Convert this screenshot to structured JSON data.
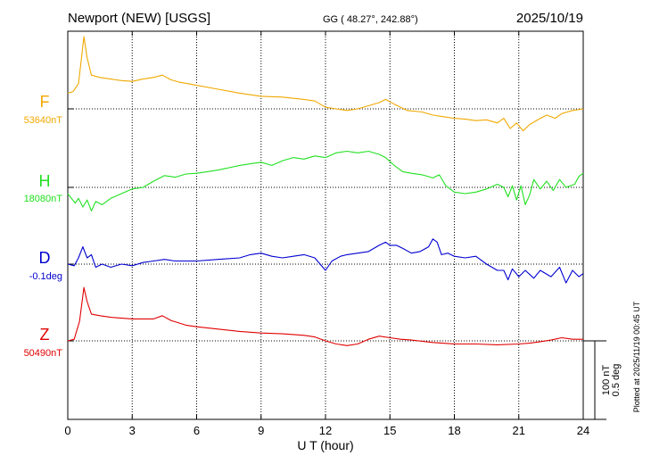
{
  "header": {
    "station": "Newport (NEW)  [USGS]",
    "coords": "GG ( 48.27°, 242.88°)",
    "date": "2025/10/19"
  },
  "footer": {
    "plotted": "Plotted at 2025/11/19 00:45 UT"
  },
  "colors": {
    "F": "#f0a800",
    "H": "#20e020",
    "D": "#0000d0",
    "Z": "#e00000",
    "axis": "#000000",
    "grid": "#000000"
  },
  "chart_data": {
    "type": "line",
    "title": "Newport (NEW)  [USGS]",
    "xlabel": "U T (hour)",
    "xlim": [
      0,
      24
    ],
    "xticks": [
      "0",
      "3",
      "6",
      "9",
      "12",
      "15",
      "18",
      "21",
      "24"
    ],
    "grid": true,
    "scale": {
      "label_nt": "100 nT",
      "label_deg": "0.5 deg"
    },
    "series": [
      {
        "name": "F",
        "baseline_label": "53640nT",
        "baseline": 53640,
        "unit": "nT",
        "points": [
          [
            0,
            53660
          ],
          [
            0.25,
            53662
          ],
          [
            0.5,
            53672
          ],
          [
            0.62,
            53700
          ],
          [
            0.75,
            53732
          ],
          [
            0.9,
            53705
          ],
          [
            1.1,
            53683
          ],
          [
            1.5,
            53680
          ],
          [
            2,
            53678
          ],
          [
            2.5,
            53676
          ],
          [
            3,
            53675
          ],
          [
            3.5,
            53678
          ],
          [
            4,
            53680
          ],
          [
            4.4,
            53683
          ],
          [
            4.8,
            53677
          ],
          [
            5.2,
            53674
          ],
          [
            6,
            53670
          ],
          [
            7,
            53665
          ],
          [
            8,
            53660
          ],
          [
            9,
            53656
          ],
          [
            10,
            53655
          ],
          [
            11,
            53652
          ],
          [
            11.5,
            53650
          ],
          [
            12,
            53642
          ],
          [
            12.5,
            53640
          ],
          [
            13,
            53638
          ],
          [
            13.5,
            53640
          ],
          [
            14,
            53644
          ],
          [
            14.5,
            53648
          ],
          [
            14.8,
            53652
          ],
          [
            15.2,
            53646
          ],
          [
            15.8,
            53638
          ],
          [
            16.5,
            53636
          ],
          [
            17,
            53632
          ],
          [
            17.5,
            53630
          ],
          [
            18,
            53628
          ],
          [
            18.5,
            53627
          ],
          [
            19,
            53625
          ],
          [
            19.5,
            53626
          ],
          [
            20,
            53622
          ],
          [
            20.3,
            53628
          ],
          [
            20.6,
            53615
          ],
          [
            20.9,
            53622
          ],
          [
            21.2,
            53612
          ],
          [
            21.5,
            53620
          ],
          [
            22,
            53628
          ],
          [
            22.3,
            53632
          ],
          [
            22.7,
            53628
          ],
          [
            23,
            53634
          ],
          [
            23.5,
            53638
          ],
          [
            24,
            53640
          ]
        ]
      },
      {
        "name": "H",
        "baseline_label": "18080nT",
        "baseline": 18080,
        "unit": "nT",
        "points": [
          [
            0,
            18072
          ],
          [
            0.2,
            18065
          ],
          [
            0.35,
            18060
          ],
          [
            0.5,
            18066
          ],
          [
            0.7,
            18055
          ],
          [
            0.9,
            18064
          ],
          [
            1.1,
            18050
          ],
          [
            1.3,
            18062
          ],
          [
            1.6,
            18058
          ],
          [
            2,
            18066
          ],
          [
            2.5,
            18072
          ],
          [
            3,
            18078
          ],
          [
            3.5,
            18080
          ],
          [
            4,
            18088
          ],
          [
            4.5,
            18095
          ],
          [
            5,
            18093
          ],
          [
            5.5,
            18097
          ],
          [
            6,
            18098
          ],
          [
            6.5,
            18100
          ],
          [
            7,
            18102
          ],
          [
            7.5,
            18105
          ],
          [
            8,
            18108
          ],
          [
            8.5,
            18110
          ],
          [
            9,
            18112
          ],
          [
            9.5,
            18108
          ],
          [
            10,
            18114
          ],
          [
            10.5,
            18118
          ],
          [
            11,
            18116
          ],
          [
            11.5,
            18120
          ],
          [
            12,
            18118
          ],
          [
            12.5,
            18124
          ],
          [
            13,
            18126
          ],
          [
            13.5,
            18124
          ],
          [
            14,
            18126
          ],
          [
            14.5,
            18122
          ],
          [
            14.8,
            18118
          ],
          [
            15.2,
            18108
          ],
          [
            15.6,
            18100
          ],
          [
            16,
            18098
          ],
          [
            16.5,
            18096
          ],
          [
            17,
            18092
          ],
          [
            17.3,
            18096
          ],
          [
            17.6,
            18082
          ],
          [
            18,
            18074
          ],
          [
            18.5,
            18072
          ],
          [
            19,
            18074
          ],
          [
            19.5,
            18078
          ],
          [
            20,
            18084
          ],
          [
            20.3,
            18080
          ],
          [
            20.5,
            18068
          ],
          [
            20.7,
            18082
          ],
          [
            20.9,
            18064
          ],
          [
            21.1,
            18082
          ],
          [
            21.3,
            18058
          ],
          [
            21.5,
            18070
          ],
          [
            21.7,
            18090
          ],
          [
            22,
            18078
          ],
          [
            22.3,
            18088
          ],
          [
            22.6,
            18076
          ],
          [
            22.9,
            18090
          ],
          [
            23.2,
            18080
          ],
          [
            23.6,
            18084
          ],
          [
            23.8,
            18094
          ],
          [
            24,
            18098
          ]
        ]
      },
      {
        "name": "D",
        "baseline_label": "-0.1deg",
        "baseline": -0.1,
        "unit": "deg",
        "points": [
          [
            0,
            -0.1
          ],
          [
            0.3,
            -0.11
          ],
          [
            0.5,
            -0.06
          ],
          [
            0.7,
            0.01
          ],
          [
            0.9,
            -0.06
          ],
          [
            1.1,
            -0.04
          ],
          [
            1.3,
            -0.12
          ],
          [
            1.6,
            -0.1
          ],
          [
            2,
            -0.12
          ],
          [
            2.5,
            -0.1
          ],
          [
            3,
            -0.11
          ],
          [
            3.5,
            -0.09
          ],
          [
            4,
            -0.08
          ],
          [
            4.5,
            -0.07
          ],
          [
            5,
            -0.08
          ],
          [
            6,
            -0.08
          ],
          [
            7,
            -0.07
          ],
          [
            8,
            -0.06
          ],
          [
            8.5,
            -0.04
          ],
          [
            9,
            -0.03
          ],
          [
            9.5,
            -0.05
          ],
          [
            10,
            -0.06
          ],
          [
            10.5,
            -0.05
          ],
          [
            11,
            -0.04
          ],
          [
            11.5,
            -0.06
          ],
          [
            12,
            -0.14
          ],
          [
            12.3,
            -0.08
          ],
          [
            12.7,
            -0.05
          ],
          [
            13,
            -0.04
          ],
          [
            13.5,
            -0.03
          ],
          [
            14,
            -0.02
          ],
          [
            14.5,
            0.02
          ],
          [
            14.8,
            0.04
          ],
          [
            15,
            0.02
          ],
          [
            15.3,
            0.02
          ],
          [
            15.6,
            0.0
          ],
          [
            16,
            -0.03
          ],
          [
            16.4,
            -0.02
          ],
          [
            16.8,
            0.01
          ],
          [
            17,
            0.06
          ],
          [
            17.2,
            0.04
          ],
          [
            17.4,
            -0.04
          ],
          [
            17.7,
            -0.03
          ],
          [
            18,
            -0.05
          ],
          [
            18.5,
            -0.06
          ],
          [
            19,
            -0.05
          ],
          [
            19.5,
            -0.1
          ],
          [
            20,
            -0.14
          ],
          [
            20.3,
            -0.14
          ],
          [
            20.5,
            -0.2
          ],
          [
            20.7,
            -0.13
          ],
          [
            21,
            -0.18
          ],
          [
            21.3,
            -0.14
          ],
          [
            21.7,
            -0.19
          ],
          [
            22,
            -0.14
          ],
          [
            22.5,
            -0.18
          ],
          [
            22.9,
            -0.12
          ],
          [
            23.2,
            -0.22
          ],
          [
            23.5,
            -0.14
          ],
          [
            23.8,
            -0.18
          ],
          [
            24,
            -0.16
          ]
        ]
      },
      {
        "name": "Z",
        "baseline_label": "50490nT",
        "baseline": 50490,
        "unit": "nT",
        "points": [
          [
            0,
            50490
          ],
          [
            0.3,
            50492
          ],
          [
            0.55,
            50515
          ],
          [
            0.75,
            50558
          ],
          [
            0.9,
            50540
          ],
          [
            1.1,
            50524
          ],
          [
            1.5,
            50522
          ],
          [
            2,
            50520
          ],
          [
            3,
            50518
          ],
          [
            4,
            50518
          ],
          [
            4.4,
            50522
          ],
          [
            4.8,
            50516
          ],
          [
            5.5,
            50510
          ],
          [
            6,
            50508
          ],
          [
            7,
            50505
          ],
          [
            8,
            50502
          ],
          [
            9,
            50500
          ],
          [
            10,
            50499
          ],
          [
            11,
            50497
          ],
          [
            11.5,
            50495
          ],
          [
            12,
            50490
          ],
          [
            12.5,
            50486
          ],
          [
            13,
            50484
          ],
          [
            13.5,
            50486
          ],
          [
            14,
            50492
          ],
          [
            14.5,
            50496
          ],
          [
            15,
            50494
          ],
          [
            15.5,
            50492
          ],
          [
            16,
            50491
          ],
          [
            17,
            50488
          ],
          [
            18,
            50486
          ],
          [
            19,
            50486
          ],
          [
            20,
            50485
          ],
          [
            21,
            50486
          ],
          [
            21.5,
            50487
          ],
          [
            22,
            50489
          ],
          [
            22.5,
            50491
          ],
          [
            23,
            50494
          ],
          [
            23.5,
            50492
          ],
          [
            24,
            50492
          ]
        ]
      }
    ]
  }
}
